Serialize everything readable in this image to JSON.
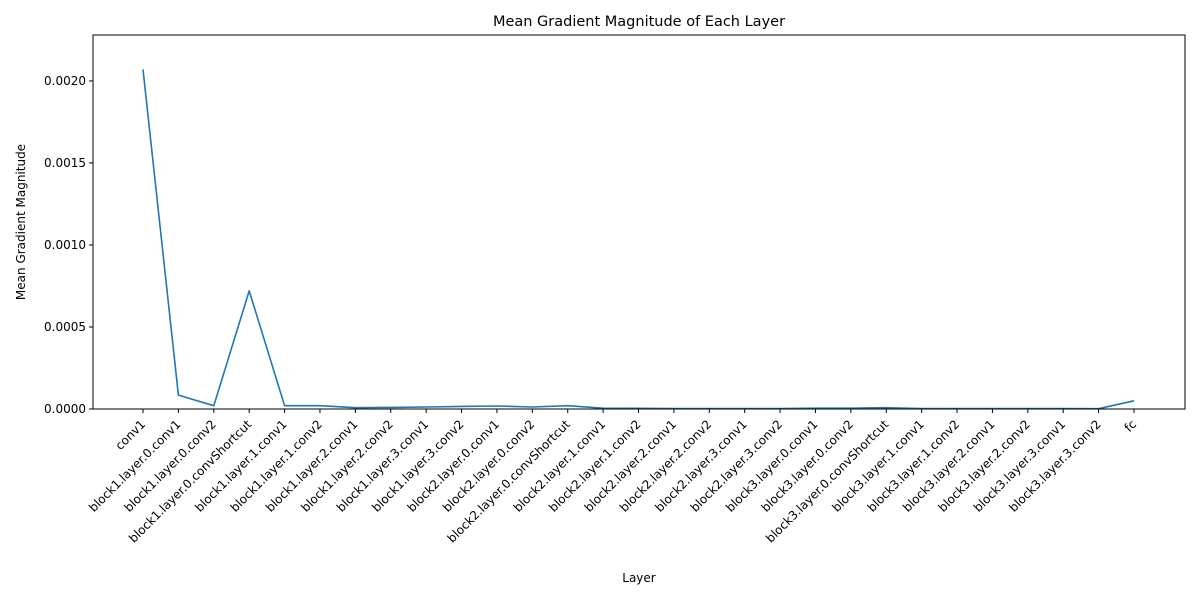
{
  "chart_data": {
    "type": "line",
    "title": "Mean Gradient Magnitude of Each Layer",
    "xlabel": "Layer",
    "ylabel": "Mean Gradient Magnitude",
    "ylim": [
      0,
      0.00228
    ],
    "yticks": [
      "0.0000",
      "0.0005",
      "0.0010",
      "0.0015",
      "0.0020"
    ],
    "ytick_values": [
      0,
      0.0005,
      0.001,
      0.0015,
      0.002
    ],
    "grid": false,
    "line_color": "#1f77b4",
    "categories": [
      "conv1",
      "block1.layer.0.conv1",
      "block1.layer.0.conv2",
      "block1.layer.0.convShortcut",
      "block1.layer.1.conv1",
      "block1.layer.1.conv2",
      "block1.layer.2.conv1",
      "block1.layer.2.conv2",
      "block1.layer.3.conv1",
      "block1.layer.3.conv2",
      "block2.layer.0.conv1",
      "block2.layer.0.conv2",
      "block2.layer.0.convShortcut",
      "block2.layer.1.conv1",
      "block2.layer.1.conv2",
      "block2.layer.2.conv1",
      "block2.layer.2.conv2",
      "block2.layer.3.conv1",
      "block2.layer.3.conv2",
      "block3.layer.0.conv1",
      "block3.layer.0.conv2",
      "block3.layer.0.convShortcut",
      "block3.layer.1.conv1",
      "block3.layer.1.conv2",
      "block3.layer.2.conv1",
      "block3.layer.2.conv2",
      "block3.layer.3.conv1",
      "block3.layer.3.conv2",
      "fc"
    ],
    "values": [
      0.00207,
      8.5e-05,
      2e-05,
      0.00072,
      2e-05,
      2e-05,
      8e-06,
      1e-05,
      1.2e-05,
      1.6e-05,
      1.8e-05,
      1.2e-05,
      2e-05,
      5e-06,
      4e-06,
      3e-06,
      3e-06,
      3e-06,
      3e-06,
      5e-06,
      5e-06,
      8e-06,
      3e-06,
      3e-06,
      3e-06,
      3e-06,
      3e-06,
      2e-06,
      5e-05
    ]
  }
}
